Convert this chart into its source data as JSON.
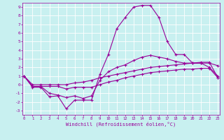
{
  "title": "",
  "xlabel": "Windchill (Refroidissement éolien,°C)",
  "x_ticks": [
    0,
    1,
    2,
    3,
    4,
    5,
    6,
    7,
    8,
    9,
    10,
    11,
    12,
    13,
    14,
    15,
    16,
    17,
    18,
    19,
    20,
    21,
    22,
    23
  ],
  "y_ticks": [
    -3,
    -2,
    -1,
    0,
    1,
    2,
    3,
    4,
    5,
    6,
    7,
    8,
    9
  ],
  "xlim": [
    -0.2,
    23.2
  ],
  "ylim": [
    -3.5,
    9.5
  ],
  "bg_color": "#c8f0f0",
  "grid_color": "#ffffff",
  "line_color": "#990099",
  "line1_x": [
    0,
    1,
    2,
    3,
    4,
    5,
    6,
    7,
    8,
    9,
    10,
    11,
    12,
    13,
    14,
    15,
    16,
    17,
    18,
    19,
    20,
    21,
    22,
    23
  ],
  "line1_y": [
    1.0,
    -0.3,
    -0.3,
    -1.4,
    -1.3,
    -2.8,
    -1.8,
    -1.8,
    -1.8,
    1.2,
    3.5,
    6.5,
    7.8,
    9.0,
    9.2,
    9.2,
    7.8,
    5.0,
    3.5,
    3.5,
    2.5,
    2.5,
    2.0,
    1.0
  ],
  "line2_x": [
    0,
    1,
    2,
    3,
    4,
    5,
    6,
    7,
    8,
    9,
    10,
    11,
    12,
    13,
    14,
    15,
    16,
    17,
    18,
    19,
    20,
    21,
    22,
    23
  ],
  "line2_y": [
    1.0,
    -0.2,
    -0.2,
    -1.0,
    -1.2,
    -1.5,
    -1.3,
    -1.6,
    -1.3,
    0.5,
    1.5,
    2.0,
    2.3,
    2.8,
    3.2,
    3.4,
    3.2,
    3.0,
    2.7,
    2.5,
    2.5,
    2.5,
    2.5,
    2.2
  ],
  "line3_x": [
    0,
    1,
    2,
    3,
    4,
    5,
    6,
    7,
    8,
    9,
    10,
    11,
    12,
    13,
    14,
    15,
    16,
    17,
    18,
    19,
    20,
    21,
    22,
    23
  ],
  "line3_y": [
    1.0,
    0.0,
    0.0,
    0.0,
    0.0,
    0.0,
    0.2,
    0.3,
    0.5,
    0.8,
    1.0,
    1.2,
    1.4,
    1.6,
    1.8,
    2.0,
    2.1,
    2.2,
    2.3,
    2.4,
    2.5,
    2.6,
    2.6,
    0.8
  ],
  "line4_x": [
    0,
    1,
    2,
    3,
    4,
    5,
    6,
    7,
    8,
    9,
    10,
    11,
    12,
    13,
    14,
    15,
    16,
    17,
    18,
    19,
    20,
    21,
    22,
    23
  ],
  "line4_y": [
    1.0,
    -0.2,
    -0.2,
    -0.2,
    -0.2,
    -0.5,
    -0.3,
    -0.3,
    -0.3,
    0.0,
    0.3,
    0.5,
    0.8,
    1.0,
    1.2,
    1.4,
    1.5,
    1.6,
    1.7,
    1.8,
    1.8,
    1.9,
    1.9,
    0.8
  ]
}
